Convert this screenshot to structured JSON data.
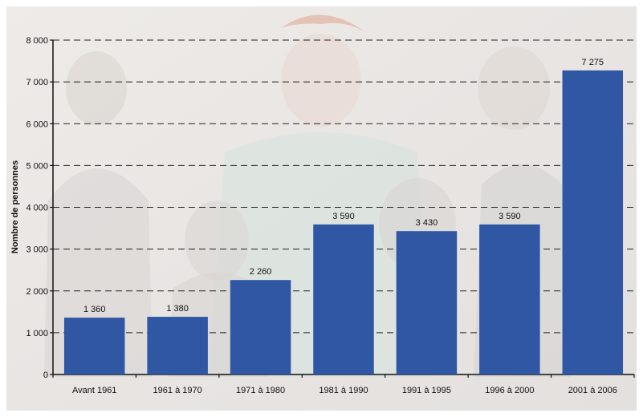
{
  "chart_data": {
    "type": "bar",
    "title": "",
    "xlabel": "",
    "ylabel": "Nombre de personnes",
    "categories": [
      "Avant 1961",
      "1961 à 1970",
      "1971 à 1980",
      "1981 à 1990",
      "1991 à 1995",
      "1996 à 2000",
      "2001 à 2006"
    ],
    "values": [
      1360,
      1380,
      2260,
      3590,
      3430,
      3590,
      7275
    ],
    "value_labels": [
      "1 360",
      "1 380",
      "2 260",
      "3 590",
      "3 430",
      "3 590",
      "7 275"
    ],
    "ylim": [
      0,
      8000
    ],
    "yticks": [
      0,
      1000,
      2000,
      3000,
      4000,
      5000,
      6000,
      7000,
      8000
    ],
    "ytick_labels": [
      "0",
      "1 000",
      "2 000",
      "3 000",
      "4 000",
      "5 000",
      "6 000",
      "7 000",
      "8 000"
    ],
    "grid": "horizontal dashed",
    "legend": "none",
    "bar_color": "#2f57a3",
    "background_style": "faded illustration of people"
  }
}
